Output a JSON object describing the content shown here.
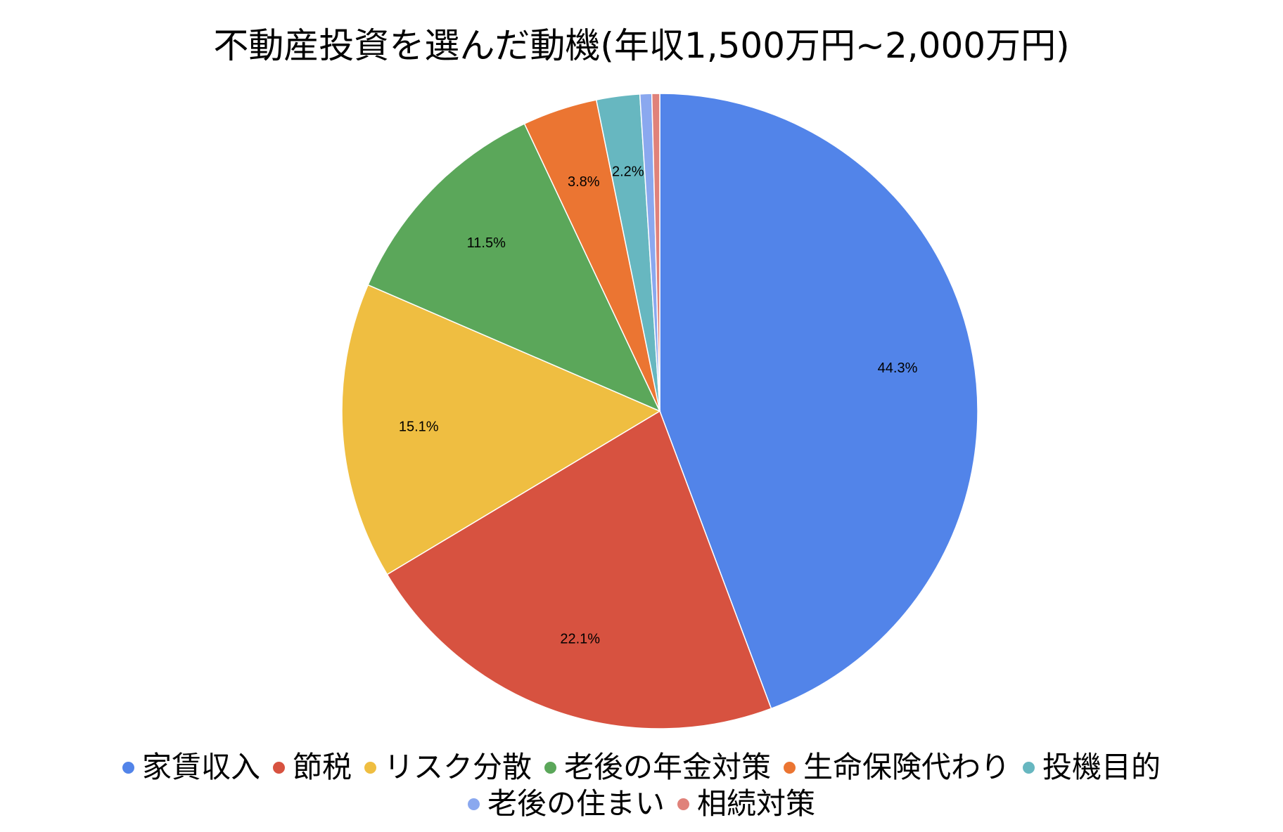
{
  "chart_data": {
    "type": "pie",
    "title": "不動産投資を選んだ動機(年収1,500万円~2,000万円)",
    "start_angle_deg": 0,
    "direction": "clockwise",
    "legend_position": "bottom",
    "slices": [
      {
        "name": "家賃収入",
        "value": 44.3,
        "label": "44.3%",
        "color": "#5284e9"
      },
      {
        "name": "節税",
        "value": 22.1,
        "label": "22.1%",
        "color": "#d75240"
      },
      {
        "name": "リスク分散",
        "value": 15.1,
        "label": "15.1%",
        "color": "#efbe41"
      },
      {
        "name": "老後の年金対策",
        "value": 11.5,
        "label": "11.5%",
        "color": "#5ba75a"
      },
      {
        "name": "生命保険代わり",
        "value": 3.8,
        "label": "3.8%",
        "color": "#eb7532"
      },
      {
        "name": "投機目的",
        "value": 2.2,
        "label": "2.2%",
        "color": "#67b7c0"
      },
      {
        "name": "老後の住まい",
        "value": 0.6,
        "label": "",
        "color": "#8aa8ef"
      },
      {
        "name": "相続対策",
        "value": 0.4,
        "label": "",
        "color": "#e0827a"
      }
    ],
    "legend_rows": [
      [
        0,
        1,
        2,
        3,
        4,
        5
      ],
      [
        6,
        7
      ]
    ]
  }
}
